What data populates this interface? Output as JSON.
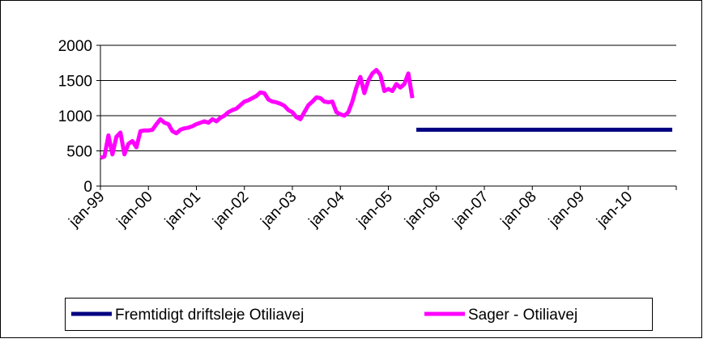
{
  "chart_data": {
    "type": "line",
    "categories": [
      "jan-99",
      null,
      null,
      null,
      null,
      null,
      null,
      null,
      null,
      null,
      null,
      null,
      "jan-00",
      null,
      null,
      null,
      null,
      null,
      null,
      null,
      null,
      null,
      null,
      null,
      "jan-01",
      null,
      null,
      null,
      null,
      null,
      null,
      null,
      null,
      null,
      null,
      null,
      "jan-02",
      null,
      null,
      null,
      null,
      null,
      null,
      null,
      null,
      null,
      null,
      null,
      "jan-03",
      null,
      null,
      null,
      null,
      null,
      null,
      null,
      null,
      null,
      null,
      null,
      "jan-04",
      null,
      null,
      null,
      null,
      null,
      null,
      null,
      null,
      null,
      null,
      null,
      "jan-05",
      null,
      null,
      null,
      null,
      null,
      null,
      null,
      null,
      null,
      null,
      null,
      "jan-06",
      null,
      null,
      null,
      null,
      null,
      null,
      null,
      null,
      null,
      null,
      null,
      "jan-07",
      null,
      null,
      null,
      null,
      null,
      null,
      null,
      null,
      null,
      null,
      null,
      "jan-08",
      null,
      null,
      null,
      null,
      null,
      null,
      null,
      null,
      null,
      null,
      null,
      "jan-09",
      null,
      null,
      null,
      null,
      null,
      null,
      null,
      null,
      null,
      null,
      null,
      "jan-10",
      null,
      null,
      null,
      null,
      null,
      null,
      null,
      null,
      null,
      null,
      null
    ],
    "series": [
      {
        "name": "Fremtidigt driftsleje Otiliavej",
        "color": "#000080",
        "values": [
          null,
          null,
          null,
          null,
          null,
          null,
          null,
          null,
          null,
          null,
          null,
          null,
          null,
          null,
          null,
          null,
          null,
          null,
          null,
          null,
          null,
          null,
          null,
          null,
          null,
          null,
          null,
          null,
          null,
          null,
          null,
          null,
          null,
          null,
          null,
          null,
          null,
          null,
          null,
          null,
          null,
          null,
          null,
          null,
          null,
          null,
          null,
          null,
          null,
          null,
          null,
          null,
          null,
          null,
          null,
          null,
          null,
          null,
          null,
          null,
          null,
          null,
          null,
          null,
          null,
          null,
          null,
          null,
          null,
          null,
          null,
          null,
          null,
          null,
          null,
          null,
          null,
          null,
          null,
          800,
          800,
          800,
          800,
          800,
          800,
          800,
          800,
          800,
          800,
          800,
          800,
          800,
          800,
          800,
          800,
          800,
          800,
          800,
          800,
          800,
          800,
          800,
          800,
          800,
          800,
          800,
          800,
          800,
          800,
          800,
          800,
          800,
          800,
          800,
          800,
          800,
          800,
          800,
          800,
          800,
          800,
          800,
          800,
          800,
          800,
          800,
          800,
          800,
          800,
          800,
          800,
          800,
          800,
          800,
          800,
          800,
          800,
          800,
          800,
          800,
          800,
          800,
          800,
          800
        ]
      },
      {
        "name": "Sager - Otiliavej",
        "color": "#ff00ff",
        "values": [
          400,
          420,
          720,
          450,
          700,
          760,
          450,
          600,
          640,
          550,
          780,
          790,
          790,
          800,
          880,
          950,
          900,
          880,
          780,
          750,
          800,
          820,
          830,
          850,
          880,
          900,
          920,
          900,
          950,
          920,
          970,
          1000,
          1050,
          1080,
          1100,
          1150,
          1200,
          1220,
          1250,
          1280,
          1330,
          1320,
          1230,
          1200,
          1190,
          1170,
          1140,
          1080,
          1050,
          980,
          950,
          1050,
          1150,
          1200,
          1260,
          1250,
          1200,
          1190,
          1200,
          1050,
          1020,
          1000,
          1050,
          1200,
          1400,
          1550,
          1320,
          1500,
          1600,
          1650,
          1580,
          1350,
          1380,
          1350,
          1450,
          1400,
          1450,
          1600,
          1250,
          null,
          null,
          null,
          null,
          null,
          null,
          null,
          null,
          null,
          null,
          null,
          null,
          null,
          null,
          null,
          null,
          null,
          null,
          null,
          null,
          null,
          null,
          null,
          null,
          null,
          null,
          null,
          null,
          null,
          null,
          null,
          null,
          null,
          null,
          null,
          null,
          null,
          null,
          null,
          null,
          null,
          null,
          null,
          null,
          null,
          null,
          null,
          null,
          null,
          null,
          null,
          null,
          null,
          null,
          null,
          null,
          null,
          null,
          null,
          null,
          null,
          null,
          null,
          null,
          null
        ]
      }
    ],
    "ylim": [
      0,
      2000
    ],
    "yticks": [
      0,
      500,
      1000,
      1500,
      2000
    ],
    "grid": true
  }
}
